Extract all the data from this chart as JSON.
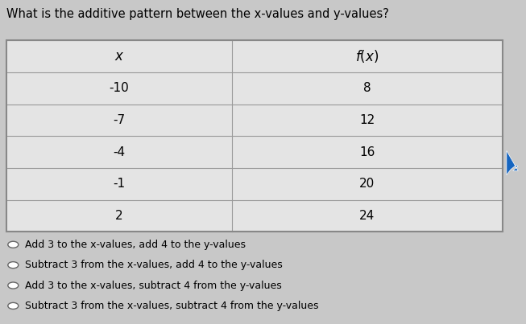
{
  "title": "What is the additive pattern between the x-values and y-values?",
  "col_headers": [
    "x",
    "f(x)"
  ],
  "rows": [
    [
      "-10",
      "8"
    ],
    [
      "-7",
      "12"
    ],
    [
      "-4",
      "16"
    ],
    [
      "-1",
      "20"
    ],
    [
      "2",
      "24"
    ]
  ],
  "options": [
    "Add 3 to the x-values, add 4 to the y-values",
    "Subtract 3 from the x-values, add 4 to the y-values",
    "Add 3 to the x-values, subtract 4 from the y-values",
    "Subtract 3 from the x-values, subtract 4 from the y-values"
  ],
  "bg_color": "#c8c8c8",
  "table_bg": "#e4e4e4",
  "border_color": "#999999",
  "text_color": "#000000",
  "title_fontsize": 10.5,
  "cell_fontsize": 11,
  "option_fontsize": 9
}
